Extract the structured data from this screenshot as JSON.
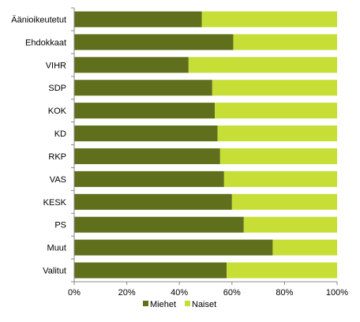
{
  "chart_data": {
    "type": "bar",
    "orientation": "horizontal",
    "stacked": true,
    "percent": true,
    "categories": [
      "Äänioikeutetut",
      "Ehdokkaat",
      "VIHR",
      "SDP",
      "KOK",
      "KD",
      "RKP",
      "VAS",
      "KESK",
      "PS",
      "Muut",
      "Valitut"
    ],
    "series": [
      {
        "name": "Miehet",
        "color": "#5f6f1b",
        "values": [
          48.5,
          60.5,
          43.5,
          52.5,
          53.5,
          54.5,
          55.5,
          57,
          60,
          64.5,
          75.5,
          58
        ]
      },
      {
        "name": "Naiset",
        "color": "#c6de36",
        "values": [
          51.5,
          39.5,
          56.5,
          47.5,
          46.5,
          45.5,
          44.5,
          43,
          40,
          35.5,
          24.5,
          42
        ]
      }
    ],
    "xlim": [
      0,
      100
    ],
    "xticks": [
      "0%",
      "20%",
      "40%",
      "60%",
      "80%",
      "100%"
    ],
    "grid": false,
    "legend_position": "bottom"
  }
}
